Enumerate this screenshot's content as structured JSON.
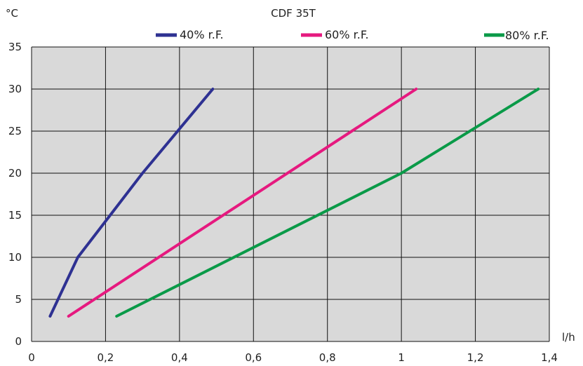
{
  "chart_data": {
    "type": "line",
    "title": "CDF 35T",
    "xlabel": "l/h",
    "ylabel": "°C",
    "xlim": [
      0,
      1.4
    ],
    "ylim": [
      0,
      35
    ],
    "xticks": [
      0,
      0.2,
      0.4,
      0.6,
      0.8,
      1,
      1.2,
      1.4
    ],
    "xtick_labels": [
      "0",
      "0,2",
      "0,4",
      "0,6",
      "0,8",
      "1",
      "1,2",
      "1,4"
    ],
    "yticks": [
      0,
      5,
      10,
      15,
      20,
      25,
      30,
      35
    ],
    "ytick_labels": [
      "0",
      "5",
      "10",
      "15",
      "20",
      "25",
      "30",
      "35"
    ],
    "grid": true,
    "legend_position": "top",
    "plot_background": "#d9d9d9",
    "series": [
      {
        "name": "40% r.F.",
        "color": "#2e3192",
        "points": [
          [
            0.05,
            3
          ],
          [
            0.125,
            10
          ],
          [
            0.3,
            20
          ],
          [
            0.49,
            30
          ]
        ]
      },
      {
        "name": "60% r.F.",
        "color": "#e6197f",
        "points": [
          [
            0.1,
            3
          ],
          [
            1.04,
            30
          ]
        ]
      },
      {
        "name": "80% r.F.",
        "color": "#0a9a48",
        "points": [
          [
            0.23,
            3
          ],
          [
            1.0,
            20
          ],
          [
            1.37,
            30
          ]
        ]
      }
    ]
  }
}
